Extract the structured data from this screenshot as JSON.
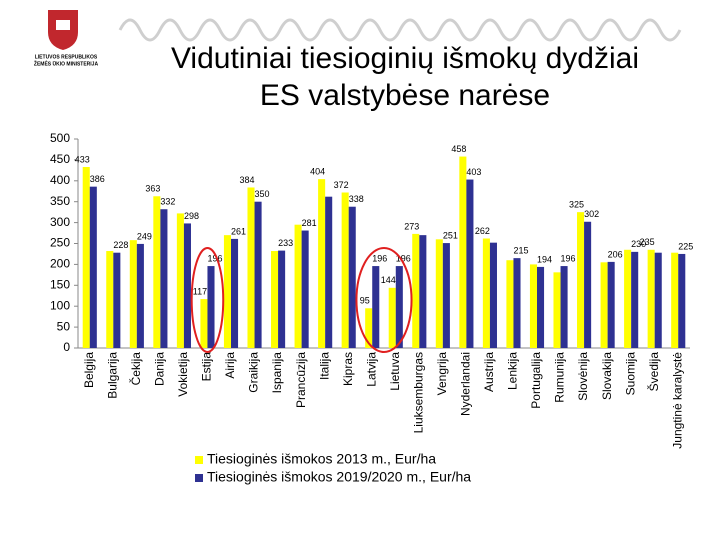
{
  "logo_text": [
    "LIETUVOS RESPUBLIKOS",
    "ŽEMĖS ŪKIO MINISTERIJA"
  ],
  "chart_data": {
    "type": "bar",
    "title": [
      "Vidutiniai tiesioginių išmokų dydžiai",
      "ES valstybėse narėse"
    ],
    "categories": [
      "Belgija",
      "Bulgarija",
      "Čekija",
      "Danija",
      "Vokietija",
      "Estija",
      "Airija",
      "Graikija",
      "Ispanija",
      "Prancūzija",
      "Italija",
      "Kipras",
      "Latvija",
      "Lietuva",
      "Liuksemburgas",
      "Vengrija",
      "Nyderlandai",
      "Austrija",
      "Lenkija",
      "Portugalija",
      "Rumunija",
      "Slovėnija",
      "Slovakija",
      "Suomija",
      "Švedija",
      "Jungtinė karalystė"
    ],
    "series": [
      {
        "name": "Tiesioginės išmokos 2013 m., Eur/ha",
        "color": "#ffff00",
        "values": [
          433,
          232,
          258,
          363,
          322,
          117,
          270,
          384,
          232,
          295,
          404,
          372,
          95,
          144,
          273,
          260,
          458,
          262,
          210,
          200,
          181,
          325,
          205,
          235,
          235,
          228
        ],
        "value_labels": [
          "433",
          null,
          null,
          "363",
          null,
          "117",
          null,
          "384",
          null,
          null,
          "404",
          "372",
          "95",
          "144",
          "273",
          null,
          "458",
          "262",
          null,
          null,
          null,
          "325",
          null,
          null,
          "235",
          null
        ]
      },
      {
        "name": "Tiesioginės išmokos 2019/2020 m., Eur/ha",
        "color": "#2e3192",
        "values": [
          386,
          228,
          249,
          332,
          298,
          196,
          261,
          350,
          233,
          281,
          362,
          338,
          196,
          196,
          270,
          251,
          403,
          252,
          215,
          194,
          196,
          302,
          206,
          230,
          228,
          225
        ],
        "value_labels": [
          "386",
          "228",
          "249",
          "332",
          "298",
          "196",
          "261",
          "350",
          "233",
          "281",
          null,
          "338",
          "196",
          "196",
          null,
          "251",
          "403",
          null,
          "215",
          "194",
          "196",
          "302",
          "206",
          "230",
          null,
          "225"
        ]
      }
    ],
    "ylim": [
      0,
      500
    ],
    "yticks": [
      0,
      50,
      100,
      150,
      200,
      250,
      300,
      350,
      400,
      450,
      500
    ],
    "grid": false
  }
}
